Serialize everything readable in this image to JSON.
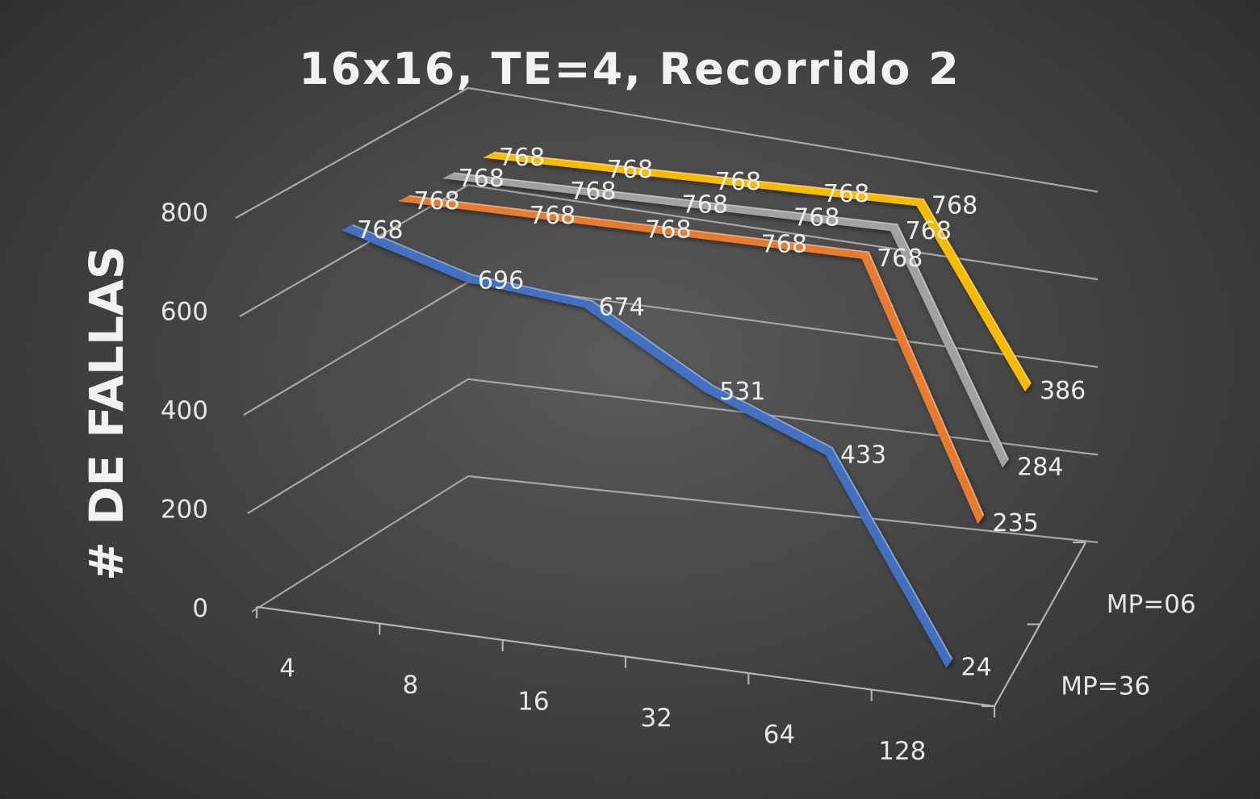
{
  "chart_data": {
    "type": "line",
    "style": "3d",
    "title": "16x16, TE=4, Recorrido 2",
    "ylabel": "# DE FALLAS",
    "xlabel": "",
    "categories": [
      "4",
      "8",
      "16",
      "32",
      "64",
      "128"
    ],
    "ylim": [
      0,
      800
    ],
    "yticks": [
      0,
      200,
      400,
      600,
      800
    ],
    "depth_tick_labels": [
      "MP=36",
      "MP=06"
    ],
    "grid": true,
    "series": [
      {
        "values": [
          768,
          696,
          674,
          531,
          433,
          24
        ],
        "color": "#4472c4"
      },
      {
        "values": [
          768,
          768,
          768,
          768,
          768,
          235
        ],
        "color": "#ed7d31"
      },
      {
        "values": [
          768,
          768,
          768,
          768,
          768,
          284
        ],
        "color": "#a5a5a5"
      },
      {
        "values": [
          768,
          768,
          768,
          768,
          768,
          386
        ],
        "color": "#ffc000"
      }
    ]
  }
}
